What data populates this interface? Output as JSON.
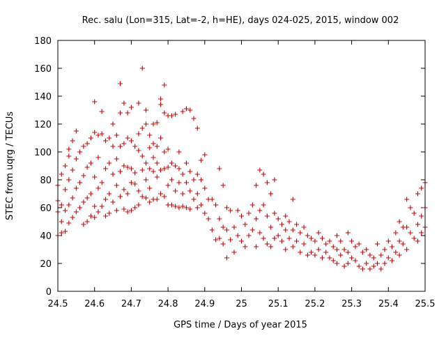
{
  "chart_data": {
    "type": "scatter",
    "title": "Rec. salu (Lon=315, Lat=-2, h=HE), days 024-025, 2015, window 002",
    "xlabel": "GPS time / Days of year 2015",
    "ylabel": "STEC from uqrg / TECUs",
    "xlim": [
      24.5,
      25.5
    ],
    "ylim": [
      0,
      180
    ],
    "x_ticks": [
      "24.5",
      "24.6",
      "24.7",
      "24.8",
      "24.9",
      "25",
      "25.1",
      "25.2",
      "25.3",
      "25.4",
      "25.5"
    ],
    "y_ticks": [
      "0",
      "20",
      "40",
      "60",
      "80",
      "100",
      "120",
      "140",
      "160",
      "180"
    ],
    "grid": false,
    "marker": "plus",
    "color": "#cc0000",
    "series": [
      {
        "points": [
          [
            24.5,
            40
          ],
          [
            24.5,
            57
          ],
          [
            24.5,
            65
          ],
          [
            24.5,
            76
          ],
          [
            24.51,
            84
          ],
          [
            24.51,
            62
          ],
          [
            24.51,
            50
          ],
          [
            24.51,
            42
          ],
          [
            24.52,
            90
          ],
          [
            24.52,
            73
          ],
          [
            24.52,
            58
          ],
          [
            24.52,
            43
          ],
          [
            24.53,
            97
          ],
          [
            24.53,
            80
          ],
          [
            24.53,
            62
          ],
          [
            24.53,
            49
          ],
          [
            24.53,
            102
          ],
          [
            24.54,
            108
          ],
          [
            24.54,
            87
          ],
          [
            24.54,
            67
          ],
          [
            24.54,
            53
          ],
          [
            24.55,
            115
          ],
          [
            24.55,
            95
          ],
          [
            24.55,
            74
          ],
          [
            24.55,
            57
          ],
          [
            24.56,
            100
          ],
          [
            24.56,
            78
          ],
          [
            24.56,
            60
          ],
          [
            24.57,
            104
          ],
          [
            24.57,
            83
          ],
          [
            24.57,
            64
          ],
          [
            24.57,
            48
          ],
          [
            24.58,
            106
          ],
          [
            24.58,
            89
          ],
          [
            24.58,
            67
          ],
          [
            24.58,
            50
          ],
          [
            24.59,
            110
          ],
          [
            24.59,
            92
          ],
          [
            24.59,
            70
          ],
          [
            24.59,
            54
          ],
          [
            24.6,
            114
          ],
          [
            24.6,
            136
          ],
          [
            24.6,
            82
          ],
          [
            24.6,
            61
          ],
          [
            24.6,
            53
          ],
          [
            24.61,
            112
          ],
          [
            24.61,
            96
          ],
          [
            24.61,
            74
          ],
          [
            24.61,
            57
          ],
          [
            24.62,
            129
          ],
          [
            24.62,
            113
          ],
          [
            24.62,
            78
          ],
          [
            24.62,
            61
          ],
          [
            24.63,
            108
          ],
          [
            24.63,
            88
          ],
          [
            24.63,
            66
          ],
          [
            24.63,
            54
          ],
          [
            24.64,
            110
          ],
          [
            24.64,
            92
          ],
          [
            24.64,
            70
          ],
          [
            24.64,
            56
          ],
          [
            24.65,
            104
          ],
          [
            24.65,
            120
          ],
          [
            24.65,
            84
          ],
          [
            24.65,
            64
          ],
          [
            24.66,
            112
          ],
          [
            24.66,
            95
          ],
          [
            24.66,
            76
          ],
          [
            24.66,
            58
          ],
          [
            24.67,
            149
          ],
          [
            24.67,
            128
          ],
          [
            24.67,
            104
          ],
          [
            24.67,
            86
          ],
          [
            24.67,
            68
          ],
          [
            24.68,
            135
          ],
          [
            24.68,
            106
          ],
          [
            24.68,
            90
          ],
          [
            24.68,
            73
          ],
          [
            24.68,
            59
          ],
          [
            24.69,
            128
          ],
          [
            24.69,
            110
          ],
          [
            24.69,
            89
          ],
          [
            24.69,
            70
          ],
          [
            24.69,
            57
          ],
          [
            24.7,
            132
          ],
          [
            24.7,
            108
          ],
          [
            24.7,
            88
          ],
          [
            24.7,
            78
          ],
          [
            24.7,
            58
          ],
          [
            24.71,
            104
          ],
          [
            24.71,
            85
          ],
          [
            24.71,
            77
          ],
          [
            24.71,
            60
          ],
          [
            24.72,
            135
          ],
          [
            24.72,
            113
          ],
          [
            24.72,
            101
          ],
          [
            24.72,
            72
          ],
          [
            24.72,
            62
          ],
          [
            24.73,
            160
          ],
          [
            24.73,
            117
          ],
          [
            24.73,
            97
          ],
          [
            24.73,
            87
          ],
          [
            24.73,
            68
          ],
          [
            24.74,
            130
          ],
          [
            24.74,
            120
          ],
          [
            24.74,
            92
          ],
          [
            24.74,
            80
          ],
          [
            24.74,
            67
          ],
          [
            24.75,
            112
          ],
          [
            24.75,
            103
          ],
          [
            24.75,
            88
          ],
          [
            24.75,
            74
          ],
          [
            24.75,
            64
          ],
          [
            24.76,
            120
          ],
          [
            24.76,
            106
          ],
          [
            24.76,
            96
          ],
          [
            24.76,
            86
          ],
          [
            24.76,
            66
          ],
          [
            24.77,
            121
          ],
          [
            24.77,
            104
          ],
          [
            24.77,
            92
          ],
          [
            24.77,
            82
          ],
          [
            24.77,
            66
          ],
          [
            24.78,
            138
          ],
          [
            24.78,
            134
          ],
          [
            24.78,
            110
          ],
          [
            24.78,
            87
          ],
          [
            24.78,
            70
          ],
          [
            24.79,
            148
          ],
          [
            24.79,
            128
          ],
          [
            24.79,
            100
          ],
          [
            24.79,
            88
          ],
          [
            24.79,
            68
          ],
          [
            24.8,
            126
          ],
          [
            24.8,
            102
          ],
          [
            24.8,
            89
          ],
          [
            24.8,
            76
          ],
          [
            24.8,
            62
          ],
          [
            24.81,
            126
          ],
          [
            24.81,
            92
          ],
          [
            24.81,
            80
          ],
          [
            24.81,
            62
          ],
          [
            24.82,
            127
          ],
          [
            24.82,
            90
          ],
          [
            24.82,
            72
          ],
          [
            24.82,
            61
          ],
          [
            24.83,
            100
          ],
          [
            24.83,
            88
          ],
          [
            24.83,
            78
          ],
          [
            24.83,
            60
          ],
          [
            24.84,
            129
          ],
          [
            24.84,
            84
          ],
          [
            24.84,
            70
          ],
          [
            24.84,
            61
          ],
          [
            24.85,
            131
          ],
          [
            24.85,
            92
          ],
          [
            24.85,
            78
          ],
          [
            24.85,
            60
          ],
          [
            24.86,
            130
          ],
          [
            24.86,
            86
          ],
          [
            24.86,
            72
          ],
          [
            24.86,
            59
          ],
          [
            24.87,
            124
          ],
          [
            24.87,
            80
          ],
          [
            24.87,
            66
          ],
          [
            24.88,
            117
          ],
          [
            24.88,
            84
          ],
          [
            24.88,
            70
          ],
          [
            24.88,
            60
          ],
          [
            24.89,
            94
          ],
          [
            24.89,
            80
          ],
          [
            24.89,
            62
          ],
          [
            24.9,
            98
          ],
          [
            24.9,
            74
          ],
          [
            24.9,
            56
          ],
          [
            24.91,
            66
          ],
          [
            24.91,
            52
          ],
          [
            24.92,
            66
          ],
          [
            24.92,
            44
          ],
          [
            24.93,
            62
          ],
          [
            24.93,
            37
          ],
          [
            24.94,
            88
          ],
          [
            24.94,
            52
          ],
          [
            24.94,
            38
          ],
          [
            24.95,
            76
          ],
          [
            24.95,
            46
          ],
          [
            24.95,
            34
          ],
          [
            24.96,
            60
          ],
          [
            24.96,
            44
          ],
          [
            24.96,
            24
          ],
          [
            24.97,
            58
          ],
          [
            24.97,
            37
          ],
          [
            24.98,
            46
          ],
          [
            24.98,
            28
          ],
          [
            24.99,
            58
          ],
          [
            24.99,
            40
          ],
          [
            25.0,
            54
          ],
          [
            25.0,
            36
          ],
          [
            25.01,
            48
          ],
          [
            25.01,
            32
          ],
          [
            25.02,
            56
          ],
          [
            25.02,
            40
          ],
          [
            25.03,
            62
          ],
          [
            25.03,
            44
          ],
          [
            25.04,
            76
          ],
          [
            25.04,
            52
          ],
          [
            25.04,
            32
          ],
          [
            25.05,
            87
          ],
          [
            25.05,
            58
          ],
          [
            25.05,
            42
          ],
          [
            25.06,
            84
          ],
          [
            25.06,
            62
          ],
          [
            25.06,
            38
          ],
          [
            25.07,
            78
          ],
          [
            25.07,
            54
          ],
          [
            25.07,
            34
          ],
          [
            25.08,
            70
          ],
          [
            25.08,
            46
          ],
          [
            25.08,
            32
          ],
          [
            25.09,
            80
          ],
          [
            25.09,
            56
          ],
          [
            25.09,
            38
          ],
          [
            25.1,
            52
          ],
          [
            25.1,
            40
          ],
          [
            25.11,
            48
          ],
          [
            25.11,
            36
          ],
          [
            25.12,
            54
          ],
          [
            25.12,
            44
          ],
          [
            25.12,
            30
          ],
          [
            25.13,
            50
          ],
          [
            25.13,
            38
          ],
          [
            25.14,
            66
          ],
          [
            25.14,
            44
          ],
          [
            25.14,
            32
          ],
          [
            25.15,
            48
          ],
          [
            25.15,
            36
          ],
          [
            25.16,
            42
          ],
          [
            25.16,
            28
          ],
          [
            25.17,
            46
          ],
          [
            25.17,
            34
          ],
          [
            25.18,
            40
          ],
          [
            25.18,
            26
          ],
          [
            25.19,
            38
          ],
          [
            25.19,
            28
          ],
          [
            25.2,
            36
          ],
          [
            25.2,
            26
          ],
          [
            25.21,
            42
          ],
          [
            25.21,
            30
          ],
          [
            25.22,
            38
          ],
          [
            25.22,
            24
          ],
          [
            25.23,
            34
          ],
          [
            25.23,
            28
          ],
          [
            25.24,
            36
          ],
          [
            25.24,
            24
          ],
          [
            25.25,
            32
          ],
          [
            25.25,
            22
          ],
          [
            25.26,
            40
          ],
          [
            25.26,
            30
          ],
          [
            25.26,
            20
          ],
          [
            25.27,
            36
          ],
          [
            25.27,
            26
          ],
          [
            25.28,
            30
          ],
          [
            25.28,
            18
          ],
          [
            25.29,
            42
          ],
          [
            25.29,
            28
          ],
          [
            25.29,
            20
          ],
          [
            25.3,
            36
          ],
          [
            25.3,
            24
          ],
          [
            25.31,
            32
          ],
          [
            25.31,
            22
          ],
          [
            25.32,
            34
          ],
          [
            25.32,
            18
          ],
          [
            25.33,
            28
          ],
          [
            25.33,
            16
          ],
          [
            25.34,
            30
          ],
          [
            25.34,
            20
          ],
          [
            25.35,
            26
          ],
          [
            25.35,
            16
          ],
          [
            25.36,
            24
          ],
          [
            25.36,
            18
          ],
          [
            25.37,
            34
          ],
          [
            25.37,
            20
          ],
          [
            25.38,
            26
          ],
          [
            25.38,
            16
          ],
          [
            25.39,
            30
          ],
          [
            25.39,
            20
          ],
          [
            25.4,
            36
          ],
          [
            25.4,
            24
          ],
          [
            25.41,
            32
          ],
          [
            25.41,
            22
          ],
          [
            25.42,
            42
          ],
          [
            25.42,
            28
          ],
          [
            25.43,
            50
          ],
          [
            25.43,
            36
          ],
          [
            25.43,
            26
          ],
          [
            25.44,
            46
          ],
          [
            25.44,
            34
          ],
          [
            25.45,
            66
          ],
          [
            25.45,
            46
          ],
          [
            25.45,
            30
          ],
          [
            25.46,
            60
          ],
          [
            25.46,
            42
          ],
          [
            25.47,
            56
          ],
          [
            25.47,
            38
          ],
          [
            25.48,
            70
          ],
          [
            25.48,
            48
          ],
          [
            25.48,
            36
          ],
          [
            25.49,
            74
          ],
          [
            25.49,
            54
          ],
          [
            25.49,
            42
          ],
          [
            25.5,
            78
          ],
          [
            25.5,
            60
          ],
          [
            25.5,
            46
          ]
        ]
      }
    ]
  }
}
